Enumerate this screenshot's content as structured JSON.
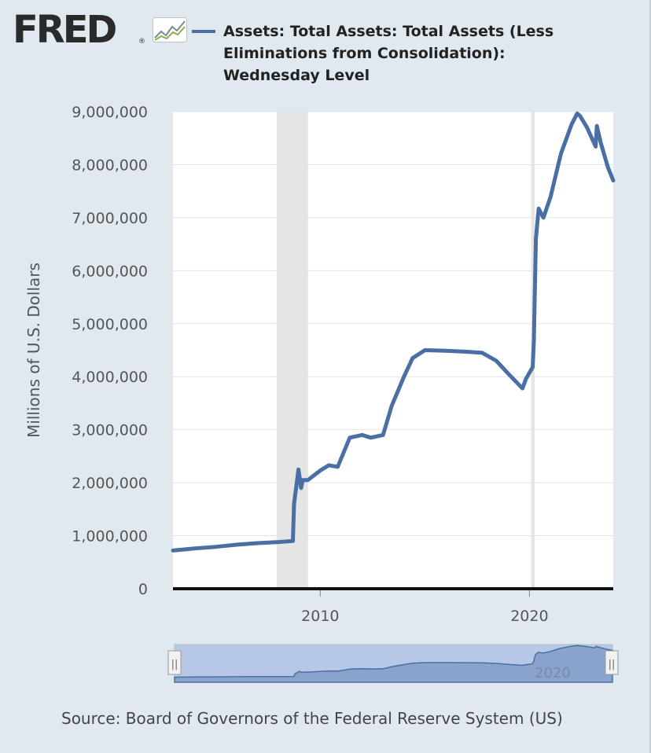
{
  "header": {
    "logo_text": "FRED",
    "logo_mark": "®",
    "logo_icon": "line-chart-icon"
  },
  "chart_data": {
    "type": "line",
    "series": [
      {
        "name": "Assets: Total Assets: Total Assets (Less Eliminations from Consolidation): Wednesday Level",
        "color": "#4a6fa5",
        "points": [
          [
            "2002-12-18",
            720000
          ],
          [
            "2004-01-01",
            760000
          ],
          [
            "2005-01-01",
            790000
          ],
          [
            "2006-01-01",
            830000
          ],
          [
            "2007-01-01",
            860000
          ],
          [
            "2008-01-01",
            880000
          ],
          [
            "2008-09-10",
            900000
          ],
          [
            "2008-10-01",
            1600000
          ],
          [
            "2008-12-17",
            2250000
          ],
          [
            "2009-02-01",
            1900000
          ],
          [
            "2009-03-01",
            2050000
          ],
          [
            "2009-06-01",
            2050000
          ],
          [
            "2010-01-01",
            2230000
          ],
          [
            "2010-06-01",
            2330000
          ],
          [
            "2010-11-01",
            2300000
          ],
          [
            "2011-06-01",
            2850000
          ],
          [
            "2012-01-01",
            2900000
          ],
          [
            "2012-06-01",
            2850000
          ],
          [
            "2013-01-01",
            2900000
          ],
          [
            "2013-06-01",
            3450000
          ],
          [
            "2014-01-01",
            4000000
          ],
          [
            "2014-06-01",
            4350000
          ],
          [
            "2015-01-01",
            4500000
          ],
          [
            "2016-01-01",
            4490000
          ],
          [
            "2017-01-01",
            4470000
          ],
          [
            "2017-10-01",
            4450000
          ],
          [
            "2018-06-01",
            4300000
          ],
          [
            "2019-01-01",
            4050000
          ],
          [
            "2019-09-01",
            3780000
          ],
          [
            "2019-11-01",
            3960000
          ],
          [
            "2020-02-26",
            4180000
          ],
          [
            "2020-03-18",
            4670000
          ],
          [
            "2020-04-22",
            6600000
          ],
          [
            "2020-06-10",
            7170000
          ],
          [
            "2020-09-01",
            7000000
          ],
          [
            "2021-01-06",
            7400000
          ],
          [
            "2021-07-01",
            8200000
          ],
          [
            "2022-01-05",
            8760000
          ],
          [
            "2022-04-13",
            8965000
          ],
          [
            "2022-06-01",
            8920000
          ],
          [
            "2022-10-01",
            8700000
          ],
          [
            "2023-03-01",
            8340000
          ],
          [
            "2023-03-22",
            8730000
          ],
          [
            "2023-06-01",
            8400000
          ],
          [
            "2023-10-01",
            7950000
          ],
          [
            "2024-01-03",
            7700000
          ]
        ]
      }
    ],
    "ylabel": "Millions of U.S. Dollars",
    "y_ticks": [
      0,
      1000000,
      2000000,
      3000000,
      4000000,
      5000000,
      6000000,
      7000000,
      8000000,
      9000000
    ],
    "y_tick_labels": [
      "0",
      "1,000,000",
      "2,000,000",
      "3,000,000",
      "4,000,000",
      "5,000,000",
      "6,000,000",
      "7,000,000",
      "8,000,000",
      "9,000,000"
    ],
    "ylim": [
      0,
      9000000
    ],
    "xlim": [
      "2002-12-18",
      "2024-01-03"
    ],
    "x_ticks": [
      "2010-01-01",
      "2020-01-01"
    ],
    "x_tick_labels": [
      "2010",
      "2020"
    ],
    "recessions": [
      [
        "2007-12-01",
        "2009-06-01"
      ],
      [
        "2020-02-01",
        "2020-04-01"
      ]
    ],
    "recession_color": "#e5e5e5",
    "grid": true,
    "legend_position": "top",
    "navigator": {
      "label": "2020",
      "handle_glyph": "||"
    }
  },
  "footer": {
    "source_text": "Source: Board of Governors of the Federal Reserve System (US)"
  }
}
